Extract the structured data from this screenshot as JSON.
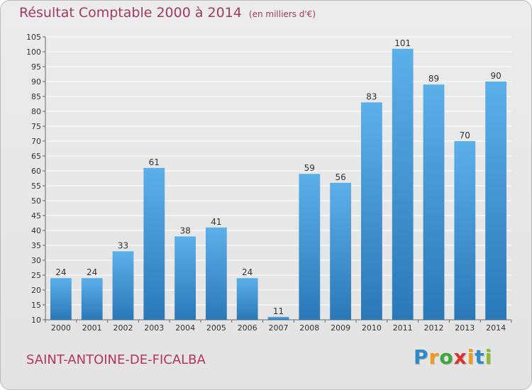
{
  "header": {
    "title": "Résultat Comptable 2000 à 2014",
    "unit": "(en milliers d'€)"
  },
  "footer": {
    "commune": "SAINT-ANTOINE-DE-FICALBA",
    "brand_letters": [
      "P",
      "r",
      "o",
      "x",
      "i",
      "t",
      "i"
    ],
    "brand_colors": [
      "#2f8ac8",
      "#f39a1c",
      "#3aa83a",
      "#d8342e",
      "#f39a1c",
      "#2f8ac8",
      "#8cbe2f"
    ]
  },
  "colors": {
    "bar_top": "#5cb0ea",
    "bar_bottom": "#2a78b8",
    "grid": "#ffffff",
    "title": "#a03a62",
    "commune": "#b43462"
  },
  "chart_data": {
    "type": "bar",
    "title": "Résultat Comptable 2000 à 2014",
    "xlabel": "",
    "ylabel": "",
    "categories": [
      "2000",
      "2001",
      "2002",
      "2003",
      "2004",
      "2005",
      "2006",
      "2007",
      "2008",
      "2009",
      "2010",
      "2011",
      "2012",
      "2013",
      "2014"
    ],
    "values": [
      24,
      24,
      33,
      61,
      38,
      41,
      24,
      11,
      59,
      56,
      83,
      101,
      89,
      70,
      90
    ],
    "ylim": [
      10,
      105
    ],
    "ytick_step": 5,
    "grid": true,
    "data_labels": true
  }
}
